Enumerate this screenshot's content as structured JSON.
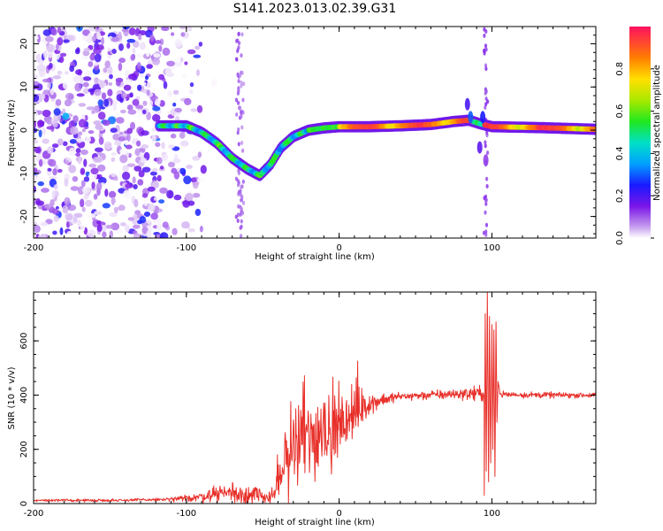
{
  "figure": {
    "title": "S141.2023.013.02.39.G31"
  },
  "colors": {
    "snr_line": "#e8302a",
    "spectro_mask": "#ffffff",
    "frame": "#000000"
  },
  "chart_data": [
    {
      "type": "heatmap",
      "title": "S141.2023.013.02.39.G31",
      "xlabel": "Height of straight line (km)",
      "ylabel": "Frequency (Hz)",
      "xlim": [
        -200,
        168
      ],
      "ylim": [
        -25,
        24
      ],
      "xticks": [
        {
          "v": -200,
          "label": "-200"
        },
        {
          "v": -100,
          "label": "-100"
        },
        {
          "v": 0,
          "label": "0"
        },
        {
          "v": 100,
          "label": "100"
        }
      ],
      "yticks": [
        {
          "v": -20,
          "label": "-20"
        },
        {
          "v": -10,
          "label": "-10"
        },
        {
          "v": 0,
          "label": "0"
        },
        {
          "v": 10,
          "label": "10"
        },
        {
          "v": 20,
          "label": "20"
        }
      ],
      "colorbar": {
        "label": "Normalized spectral amplitude",
        "range": [
          0,
          1
        ],
        "ticks": [
          {
            "v": 0.0,
            "label": "0.0"
          },
          {
            "v": 0.2,
            "label": "0.2"
          },
          {
            "v": 0.4,
            "label": "0.4"
          },
          {
            "v": 0.6,
            "label": "0.6"
          },
          {
            "v": 0.8,
            "label": "0.8"
          }
        ]
      },
      "ridge": [
        {
          "x": -118,
          "y": 1.0
        },
        {
          "x": -100,
          "y": 1.0
        },
        {
          "x": -90,
          "y": -0.5
        },
        {
          "x": -80,
          "y": -3.0
        },
        {
          "x": -70,
          "y": -6.5
        },
        {
          "x": -60,
          "y": -9.0
        },
        {
          "x": -52,
          "y": -10.5
        },
        {
          "x": -45,
          "y": -8.0
        },
        {
          "x": -38,
          "y": -4.0
        },
        {
          "x": -30,
          "y": -1.5
        },
        {
          "x": -20,
          "y": 0.0
        },
        {
          "x": -10,
          "y": 0.5
        },
        {
          "x": 0,
          "y": 0.8
        },
        {
          "x": 20,
          "y": 0.8
        },
        {
          "x": 40,
          "y": 1.0
        },
        {
          "x": 60,
          "y": 1.3
        },
        {
          "x": 75,
          "y": 2.0
        },
        {
          "x": 85,
          "y": 2.3
        },
        {
          "x": 92,
          "y": 1.5
        },
        {
          "x": 100,
          "y": 0.8
        },
        {
          "x": 130,
          "y": 0.6
        },
        {
          "x": 168,
          "y": 0.2
        }
      ]
    },
    {
      "type": "line",
      "xlabel": "Height of straight line (km)",
      "ylabel": "SNR (10 * v/v)",
      "xlim": [
        -200,
        168
      ],
      "ylim": [
        0,
        780
      ],
      "xticks": [
        {
          "v": -200,
          "label": "-200"
        },
        {
          "v": -100,
          "label": "-100"
        },
        {
          "v": 0,
          "label": "0"
        },
        {
          "v": 100,
          "label": "100"
        }
      ],
      "yticks": [
        {
          "v": 0,
          "label": "0"
        },
        {
          "v": 200,
          "label": "200"
        },
        {
          "v": 400,
          "label": "400"
        },
        {
          "v": 600,
          "label": "600"
        }
      ],
      "trend": [
        {
          "x": -200,
          "y": 12
        },
        {
          "x": -150,
          "y": 12
        },
        {
          "x": -110,
          "y": 15
        },
        {
          "x": -90,
          "y": 25
        },
        {
          "x": -75,
          "y": 45
        },
        {
          "x": -60,
          "y": 30
        },
        {
          "x": -45,
          "y": 25
        },
        {
          "x": -40,
          "y": 60
        },
        {
          "x": -35,
          "y": 160
        },
        {
          "x": -25,
          "y": 220
        },
        {
          "x": -15,
          "y": 250
        },
        {
          "x": -5,
          "y": 270
        },
        {
          "x": 5,
          "y": 300
        },
        {
          "x": 15,
          "y": 350
        },
        {
          "x": 25,
          "y": 380
        },
        {
          "x": 40,
          "y": 395
        },
        {
          "x": 60,
          "y": 400
        },
        {
          "x": 80,
          "y": 405
        },
        {
          "x": 90,
          "y": 405
        },
        {
          "x": 110,
          "y": 402
        },
        {
          "x": 140,
          "y": 400
        },
        {
          "x": 168,
          "y": 400
        }
      ],
      "noise": [
        {
          "x": -200,
          "a": 4
        },
        {
          "x": -120,
          "a": 6
        },
        {
          "x": -100,
          "a": 12
        },
        {
          "x": -80,
          "a": 30
        },
        {
          "x": -60,
          "a": 50
        },
        {
          "x": -45,
          "a": 25
        },
        {
          "x": -40,
          "a": 60
        },
        {
          "x": -30,
          "a": 150
        },
        {
          "x": -20,
          "a": 180
        },
        {
          "x": -10,
          "a": 160
        },
        {
          "x": 0,
          "a": 120
        },
        {
          "x": 10,
          "a": 100
        },
        {
          "x": 20,
          "a": 40
        },
        {
          "x": 40,
          "a": 15
        },
        {
          "x": 80,
          "a": 20
        },
        {
          "x": 90,
          "a": 30
        },
        {
          "x": 110,
          "a": 12
        },
        {
          "x": 168,
          "a": 10
        }
      ],
      "spikes": [
        {
          "x": 95,
          "y": 30
        },
        {
          "x": 95.6,
          "y": 700
        },
        {
          "x": 96.3,
          "y": 120
        },
        {
          "x": 97.0,
          "y": 780
        },
        {
          "x": 97.8,
          "y": 80
        },
        {
          "x": 98.4,
          "y": 690
        },
        {
          "x": 99.2,
          "y": 150
        },
        {
          "x": 100.0,
          "y": 660
        },
        {
          "x": 100.6,
          "y": 200
        },
        {
          "x": 101.3,
          "y": 640
        },
        {
          "x": 102.0,
          "y": 100
        },
        {
          "x": 102.7,
          "y": 670
        },
        {
          "x": 103.3,
          "y": 300
        },
        {
          "x": 104.0,
          "y": 450
        },
        {
          "x": 105.0,
          "y": 420
        }
      ]
    }
  ]
}
